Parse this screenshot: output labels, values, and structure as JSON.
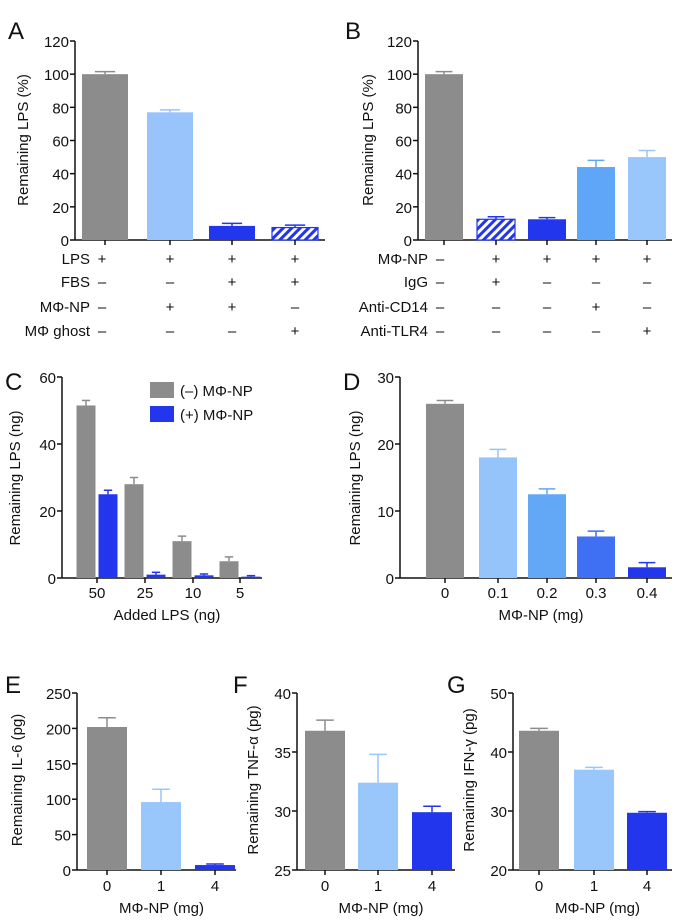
{
  "chart_data": [
    {
      "panel": "A",
      "type": "bar",
      "ylabel": "Remaining LPS (%)",
      "ylim": [
        0,
        120
      ],
      "yticks": [
        0,
        20,
        40,
        60,
        80,
        100,
        120
      ],
      "values": [
        100,
        77,
        8.5,
        7.5
      ],
      "errors": [
        1.5,
        1.5,
        1.5,
        1.5
      ],
      "colors": [
        "#8c8c8c",
        "#99c3fb",
        "#2236ee",
        "#2236ee"
      ],
      "hatched": [
        false,
        false,
        false,
        true
      ],
      "conditions": [
        {
          "label": "LPS",
          "signs": [
            "+",
            "+",
            "+",
            "+"
          ]
        },
        {
          "label": "FBS",
          "signs": [
            "–",
            "–",
            "+",
            "+"
          ]
        },
        {
          "label": "MΦ-NP",
          "signs": [
            "–",
            "+",
            "+",
            "–"
          ]
        },
        {
          "label": "MΦ ghost",
          "signs": [
            "–",
            "–",
            "–",
            "+"
          ]
        }
      ]
    },
    {
      "panel": "B",
      "type": "bar",
      "ylabel": "Remaining LPS (%)",
      "ylim": [
        0,
        120
      ],
      "yticks": [
        0,
        20,
        40,
        60,
        80,
        100,
        120
      ],
      "values": [
        100,
        12.5,
        12.5,
        44,
        50
      ],
      "errors": [
        1.5,
        1.5,
        1,
        4,
        4
      ],
      "colors": [
        "#8c8c8c",
        "#2236ee",
        "#2236ee",
        "#60a6f8",
        "#99c6fb"
      ],
      "hatched": [
        false,
        true,
        false,
        false,
        false
      ],
      "conditions": [
        {
          "label": "MΦ-NP",
          "signs": [
            "–",
            "+",
            "+",
            "+",
            "+"
          ]
        },
        {
          "label": "IgG",
          "signs": [
            "–",
            "+",
            "–",
            "–",
            "–"
          ]
        },
        {
          "label": "Anti-CD14",
          "signs": [
            "–",
            "–",
            "–",
            "+",
            "–"
          ]
        },
        {
          "label": "Anti-TLR4",
          "signs": [
            "–",
            "–",
            "–",
            "–",
            "+"
          ]
        }
      ]
    },
    {
      "panel": "C",
      "type": "bar",
      "ylabel": "Remaining LPS (ng)",
      "xlabel": "Added LPS (ng)",
      "ylim": [
        0,
        60
      ],
      "yticks": [
        0,
        20,
        40,
        60
      ],
      "categories": [
        "50",
        "25",
        "10",
        "5"
      ],
      "series": [
        {
          "name": "(–) MΦ-NP",
          "color": "#8c8c8c",
          "values": [
            51.5,
            28,
            11,
            5
          ],
          "errors": [
            1.5,
            2,
            1.5,
            1.3
          ]
        },
        {
          "name": "(+) MΦ-NP",
          "color": "#2236ee",
          "values": [
            25,
            1,
            0.8,
            0.4
          ],
          "errors": [
            1.2,
            0.7,
            0.4,
            0.3
          ]
        }
      ],
      "legend": "top-right"
    },
    {
      "panel": "D",
      "type": "bar",
      "ylabel": "Remaining LPS (ng)",
      "xlabel": "MΦ-NP (mg)",
      "ylim": [
        0,
        30
      ],
      "yticks": [
        0,
        10,
        20,
        30
      ],
      "categories": [
        "0",
        "0.1",
        "0.2",
        "0.3",
        "0.4"
      ],
      "values": [
        26,
        18,
        12.5,
        6.2,
        1.6
      ],
      "errors": [
        0.5,
        1.2,
        0.8,
        0.8,
        0.7
      ],
      "colors": [
        "#8c8c8c",
        "#94c4f9",
        "#62a8f6",
        "#3f6ff2",
        "#2236ee"
      ]
    },
    {
      "panel": "E",
      "type": "bar",
      "ylabel": "Remaining IL-6 (pg)",
      "xlabel": "MΦ-NP (mg)",
      "ylim": [
        0,
        250
      ],
      "yticks": [
        0,
        50,
        100,
        150,
        200,
        250
      ],
      "categories": [
        "0",
        "1",
        "4"
      ],
      "values": [
        202,
        96,
        7
      ],
      "errors": [
        13,
        18,
        1.5
      ],
      "colors": [
        "#8c8c8c",
        "#99c6fb",
        "#2236ee"
      ]
    },
    {
      "panel": "F",
      "type": "bar",
      "ylabel": "Remaining TNF-α (pg)",
      "xlabel": "MΦ-NP (mg)",
      "ylim": [
        25,
        40
      ],
      "yticks": [
        25,
        30,
        35,
        40
      ],
      "categories": [
        "0",
        "1",
        "4"
      ],
      "values": [
        36.8,
        32.4,
        29.9
      ],
      "errors": [
        0.9,
        2.4,
        0.5
      ],
      "colors": [
        "#8c8c8c",
        "#99c6fb",
        "#2236ee"
      ]
    },
    {
      "panel": "G",
      "type": "bar",
      "ylabel": "Remaining IFN-γ (pg)",
      "xlabel": "MΦ-NP (mg)",
      "ylim": [
        20,
        50
      ],
      "yticks": [
        20,
        30,
        40,
        50
      ],
      "categories": [
        "0",
        "1",
        "4"
      ],
      "values": [
        43.6,
        37.0,
        29.7
      ],
      "errors": [
        0.4,
        0.4,
        0.2
      ],
      "colors": [
        "#8c8c8c",
        "#99c6fb",
        "#2236ee"
      ]
    }
  ]
}
